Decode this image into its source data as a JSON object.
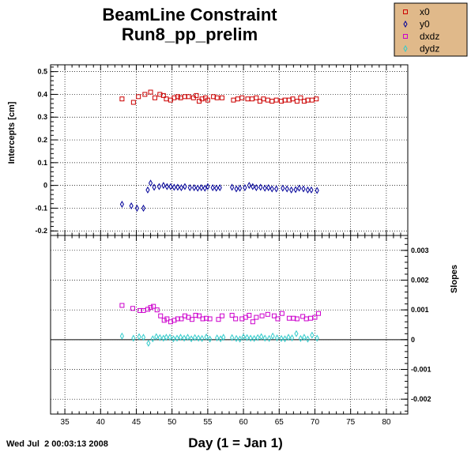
{
  "header": {
    "title_line1": "BeamLine Constraint",
    "title_line2": "Run8_pp_prelim"
  },
  "footer": {
    "timestamp": "Wed Jul  2 00:03:13 2008",
    "xaxis_label": "Day (1 = Jan 1)"
  },
  "colors": {
    "x0": "#cc0000",
    "y0": "#000099",
    "dxdz": "#cc00cc",
    "dydz": "#33cccc",
    "legend_bg": "#e0b98a",
    "grid": "#000000"
  },
  "chart_data": [
    {
      "type": "scatter",
      "panel": "top",
      "ylabel": "Intercepts [cm]",
      "xlim": [
        33,
        83
      ],
      "ylim": [
        -0.22,
        0.53
      ],
      "grid": true,
      "xticks": [
        35,
        40,
        45,
        50,
        55,
        60,
        65,
        70,
        75,
        80
      ],
      "yticks": [
        -0.2,
        -0.1,
        0,
        0.1,
        0.2,
        0.3,
        0.4,
        0.5
      ],
      "ytick_labels": [
        "-0.2",
        "-0.1",
        "0",
        "0.1",
        "0.2",
        "0.3",
        "0.4",
        "0.5"
      ],
      "series": [
        {
          "name": "x0",
          "marker": "square",
          "x": [
            43.0,
            44.6,
            45.3,
            46.2,
            47.0,
            47.6,
            48.3,
            48.8,
            49.2,
            49.8,
            50.3,
            50.8,
            51.2,
            51.8,
            52.3,
            53.0,
            53.4,
            53.8,
            54.2,
            54.7,
            55.0,
            55.8,
            56.3,
            57.0,
            58.6,
            59.2,
            59.8,
            60.6,
            61.2,
            61.8,
            62.3,
            62.8,
            63.4,
            64.0,
            64.6,
            65.3,
            65.8,
            66.4,
            66.9,
            67.5,
            68.0,
            68.5,
            69.0,
            69.6,
            70.2
          ],
          "y": [
            0.38,
            0.365,
            0.39,
            0.4,
            0.41,
            0.385,
            0.4,
            0.395,
            0.38,
            0.375,
            0.385,
            0.39,
            0.385,
            0.39,
            0.39,
            0.385,
            0.395,
            0.37,
            0.38,
            0.385,
            0.375,
            0.39,
            0.385,
            0.385,
            0.375,
            0.38,
            0.385,
            0.38,
            0.38,
            0.385,
            0.37,
            0.38,
            0.375,
            0.37,
            0.375,
            0.37,
            0.375,
            0.375,
            0.38,
            0.37,
            0.385,
            0.37,
            0.375,
            0.375,
            0.38
          ]
        },
        {
          "name": "y0",
          "marker": "diamond",
          "x": [
            43.0,
            44.3,
            45.1,
            46.0,
            46.6,
            47.0,
            47.5,
            48.2,
            48.8,
            49.3,
            49.8,
            50.3,
            50.8,
            51.3,
            51.8,
            52.5,
            53.1,
            53.6,
            54.1,
            54.6,
            55.0,
            55.7,
            56.2,
            56.7,
            58.4,
            59.0,
            59.5,
            60.2,
            60.8,
            61.3,
            61.8,
            62.4,
            63.0,
            63.5,
            64.0,
            64.6,
            65.5,
            66.1,
            66.7,
            67.3,
            67.8,
            68.4,
            69.0,
            69.5,
            70.3
          ],
          "y": [
            -0.083,
            -0.09,
            -0.1,
            -0.1,
            -0.02,
            0.01,
            -0.008,
            -0.005,
            0.0,
            -0.005,
            -0.005,
            -0.008,
            -0.008,
            -0.01,
            -0.005,
            -0.01,
            -0.01,
            -0.012,
            -0.01,
            -0.012,
            -0.005,
            -0.01,
            -0.012,
            -0.01,
            -0.008,
            -0.015,
            -0.012,
            -0.01,
            0.0,
            -0.005,
            -0.01,
            -0.008,
            -0.012,
            -0.01,
            -0.015,
            -0.015,
            -0.012,
            -0.015,
            -0.02,
            -0.018,
            -0.012,
            -0.015,
            -0.02,
            -0.02,
            -0.022
          ]
        }
      ]
    },
    {
      "type": "scatter",
      "panel": "bottom",
      "ylabel": "Slopes",
      "xlim": [
        33,
        83
      ],
      "ylim": [
        -0.0025,
        0.0035
      ],
      "grid": true,
      "xticks": [
        35,
        40,
        45,
        50,
        55,
        60,
        65,
        70,
        75,
        80
      ],
      "yticks": [
        -0.002,
        -0.001,
        0,
        0.001,
        0.002,
        0.003
      ],
      "ytick_labels": [
        "-0.002",
        "-0.001",
        "0",
        "0.001",
        "0.002",
        "0.003"
      ],
      "reference_line_y": 0,
      "series": [
        {
          "name": "dxdz",
          "marker": "square",
          "x": [
            43.0,
            44.5,
            45.5,
            46.0,
            46.6,
            47.0,
            47.4,
            47.9,
            48.4,
            48.9,
            49.3,
            49.8,
            50.3,
            50.8,
            51.3,
            51.8,
            52.3,
            52.8,
            53.3,
            53.8,
            54.3,
            54.8,
            55.3,
            56.5,
            57.0,
            58.4,
            58.9,
            59.8,
            60.3,
            60.8,
            61.3,
            61.8,
            62.6,
            63.4,
            64.3,
            64.8,
            65.4,
            66.4,
            67.0,
            67.5,
            68.3,
            68.8,
            69.4,
            70.0,
            70.5
          ],
          "y": [
            0.00115,
            0.00105,
            0.00098,
            0.00098,
            0.00102,
            0.00108,
            0.00112,
            0.001,
            0.0008,
            0.00065,
            0.0007,
            0.0006,
            0.00065,
            0.0007,
            0.0007,
            0.0008,
            0.00075,
            0.00068,
            0.00082,
            0.0008,
            0.0007,
            0.00072,
            0.0007,
            0.00068,
            0.0008,
            0.00082,
            0.0007,
            0.0007,
            0.00075,
            0.00082,
            0.0006,
            0.00075,
            0.0008,
            0.00085,
            0.0008,
            0.0007,
            0.00088,
            0.00072,
            0.00072,
            0.0007,
            0.00078,
            0.0007,
            0.00072,
            0.00075,
            0.00088
          ]
        },
        {
          "name": "dydz",
          "marker": "diamond",
          "x": [
            43.0,
            44.6,
            45.4,
            46.0,
            46.7,
            47.3,
            47.8,
            48.3,
            48.8,
            49.2,
            49.7,
            50.2,
            50.7,
            51.2,
            51.7,
            52.2,
            52.7,
            53.2,
            53.7,
            54.2,
            54.8,
            55.3,
            56.3,
            56.8,
            57.2,
            58.4,
            59.0,
            59.5,
            60.0,
            60.5,
            61.0,
            61.5,
            62.0,
            62.5,
            63.0,
            63.6,
            64.1,
            64.7,
            65.3,
            65.8,
            66.3,
            66.8,
            67.4,
            68.0,
            68.5,
            69.0,
            69.6,
            70.3
          ],
          "y": [
            0.00012,
            5e-05,
            0.0001,
            8e-05,
            -0.00012,
            3e-05,
            0.0001,
            7e-05,
            5e-05,
            8e-05,
            8e-05,
            3e-05,
            5e-05,
            8e-05,
            5e-05,
            8e-05,
            3e-05,
            7e-05,
            5e-05,
            4e-05,
            9e-05,
            2e-05,
            6e-05,
            3e-05,
            8e-05,
            7e-05,
            4e-05,
            2e-05,
            9e-05,
            7e-05,
            5e-05,
            4e-05,
            7e-05,
            0.0001,
            5e-05,
            4e-05,
            0.00012,
            6e-05,
            4e-05,
            3e-05,
            8e-05,
            6e-05,
            0.0002,
            4e-05,
            8e-05,
            2e-05,
            0.00015,
            5e-05
          ]
        }
      ]
    }
  ],
  "legend": {
    "placement": "top-right",
    "entries": [
      {
        "name": "x0",
        "marker": "square",
        "color_key": "x0"
      },
      {
        "name": "y0",
        "marker": "diamond",
        "color_key": "y0"
      },
      {
        "name": "dxdz",
        "marker": "square",
        "color_key": "dxdz"
      },
      {
        "name": "dydz",
        "marker": "diamond",
        "color_key": "dydz"
      }
    ]
  }
}
